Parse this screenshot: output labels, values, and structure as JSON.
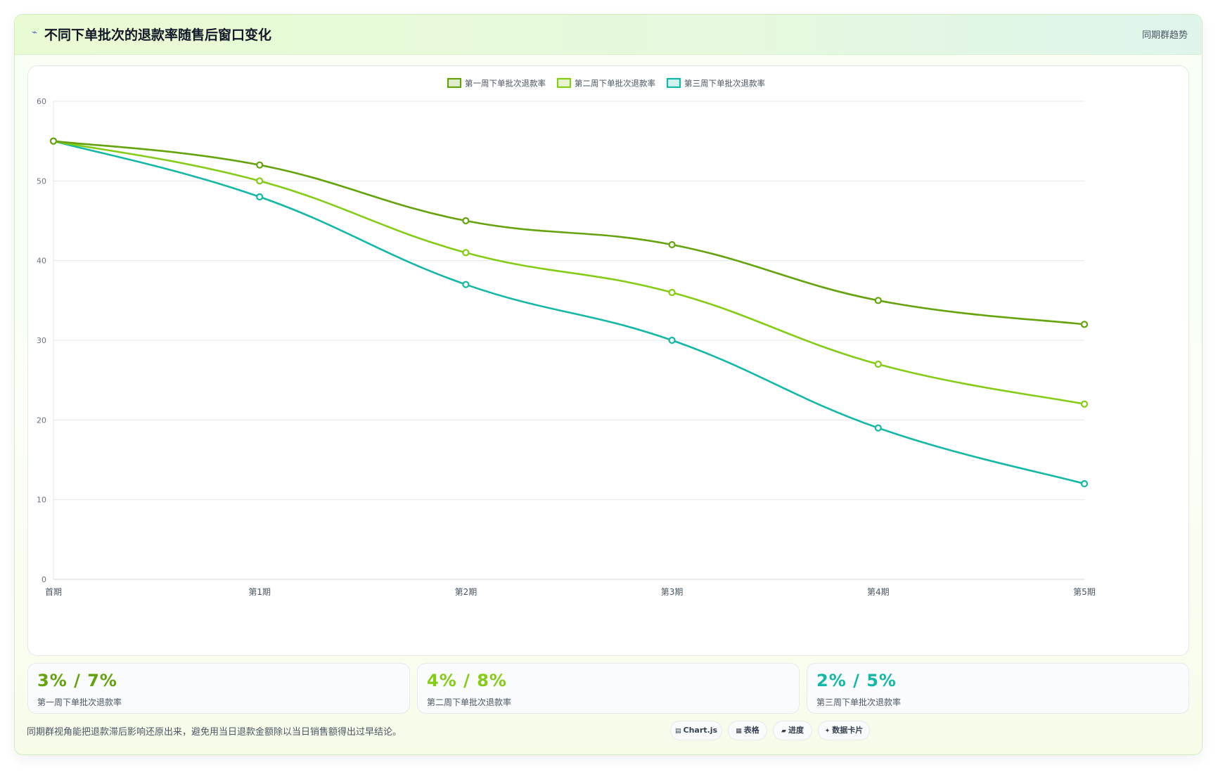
{
  "header": {
    "icon": "trend-icon",
    "title": "不同下单批次的退款率随售后窗口变化",
    "tag": "同期群趋势"
  },
  "chart_data": {
    "type": "line",
    "categories": [
      "首期",
      "第1期",
      "第2期",
      "第3期",
      "第4期",
      "第5期"
    ],
    "ylim": [
      0,
      60
    ],
    "yticks": [
      0,
      10,
      20,
      30,
      40,
      50,
      60
    ],
    "grid": true,
    "legend_position": "top-center",
    "series": [
      {
        "name": "第一周下单批次退款率",
        "color": "#65a30d",
        "values": [
          55,
          52,
          45,
          42,
          35,
          32
        ]
      },
      {
        "name": "第二周下单批次退款率",
        "color": "#84cc16",
        "values": [
          55,
          50,
          41,
          36,
          27,
          22
        ]
      },
      {
        "name": "第三周下单批次退款率",
        "color": "#14b8a6",
        "values": [
          55,
          48,
          37,
          30,
          19,
          12
        ]
      }
    ]
  },
  "stats": [
    {
      "value": "3% / 7%",
      "label": "第一周下单批次退款率",
      "color": "#65a30d"
    },
    {
      "value": "4% / 8%",
      "label": "第二周下单批次退款率",
      "color": "#84cc16"
    },
    {
      "value": "2% / 5%",
      "label": "第三周下单批次退款率",
      "color": "#14b8a6"
    }
  ],
  "note": "同期群视角能把退款滞后影响还原出来，避免用当日退款金额除以当日销售额得出过早结论。",
  "chips": [
    {
      "icon": "chart-icon",
      "glyph": "▤",
      "label": "Chart.js"
    },
    {
      "icon": "table-icon",
      "glyph": "▦",
      "label": "表格"
    },
    {
      "icon": "progress-icon",
      "glyph": "▰",
      "label": "进度"
    },
    {
      "icon": "sparkle-icon",
      "glyph": "✦",
      "label": "数据卡片"
    }
  ]
}
